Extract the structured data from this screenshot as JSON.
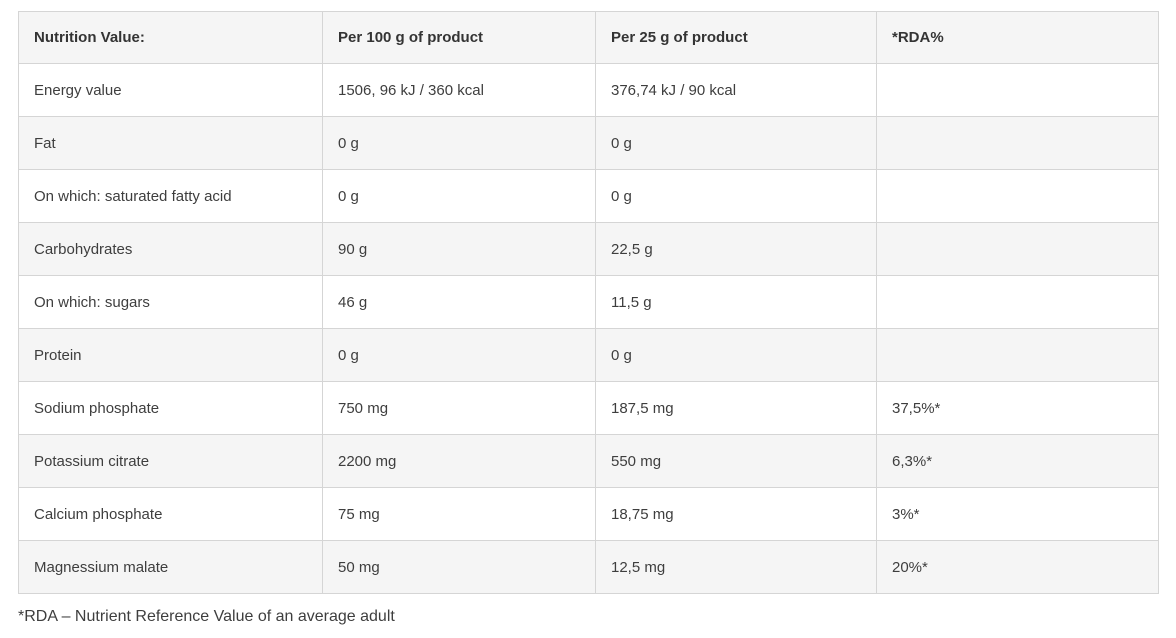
{
  "table": {
    "headers": [
      "Nutrition Value:",
      "Per 100 g of product",
      "Per 25 g of product",
      "*RDA%"
    ],
    "rows": [
      {
        "name": "Energy value",
        "per100": "1506, 96 kJ / 360 kcal",
        "per25": "376,74 kJ / 90 kcal",
        "rda": ""
      },
      {
        "name": "Fat",
        "per100": "0 g",
        "per25": "0 g",
        "rda": ""
      },
      {
        "name": "On which: saturated fatty acid",
        "per100": "0 g",
        "per25": "0 g",
        "rda": ""
      },
      {
        "name": "Carbohydrates",
        "per100": "90 g",
        "per25": "22,5 g",
        "rda": ""
      },
      {
        "name": "On which: sugars",
        "per100": "46 g",
        "per25": "11,5 g",
        "rda": ""
      },
      {
        "name": "Protein",
        "per100": "0 g",
        "per25": "0 g",
        "rda": ""
      },
      {
        "name": "Sodium phosphate",
        "per100": "750 mg",
        "per25": "187,5 mg",
        "rda": "37,5%*"
      },
      {
        "name": "Potassium citrate",
        "per100": "2200 mg",
        "per25": "550 mg",
        "rda": "6,3%*"
      },
      {
        "name": "Calcium phosphate",
        "per100": "75 mg",
        "per25": "18,75 mg",
        "rda": "3%*"
      },
      {
        "name": "Magnessium malate",
        "per100": "50 mg",
        "per25": "12,5 mg",
        "rda": "20%*"
      }
    ]
  },
  "footnote": "*RDA – Nutrient Reference Value of an average adult",
  "colors": {
    "header_background": "#f5f5f5",
    "stripe_background": "#f5f5f5",
    "row_background": "#ffffff",
    "border": "#d5d5d5",
    "text": "#3e3e3e"
  }
}
